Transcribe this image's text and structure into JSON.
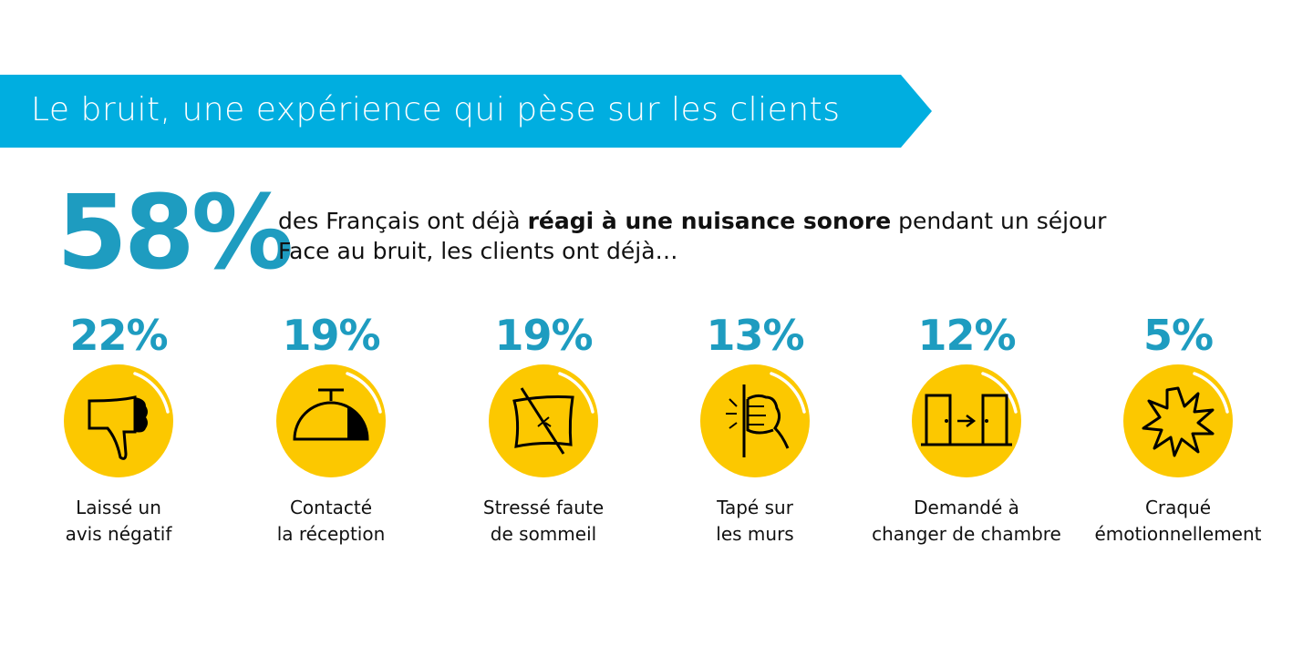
{
  "header": {
    "title": "Le bruit, une expérience qui pèse sur les clients"
  },
  "headline": {
    "value": "58%",
    "line1_pre": "des Français ont déjà ",
    "line1_bold": "réagi à une nuisance sonore",
    "line1_post": " pendant un séjour",
    "line2": "Face au bruit, les clients ont déjà…"
  },
  "colors": {
    "banner": "#00aee0",
    "accent": "#1e9cc0",
    "circle": "#fcc800"
  },
  "stats": [
    {
      "value": "22%",
      "line1": "Laissé un",
      "line2": "avis négatif",
      "icon": "thumbs-down-icon"
    },
    {
      "value": "19%",
      "line1": "Contacté",
      "line2": "la réception",
      "icon": "reception-bell-icon"
    },
    {
      "value": "19%",
      "line1": "Stressé faute",
      "line2": "de sommeil",
      "icon": "crossed-pillow-icon"
    },
    {
      "value": "13%",
      "line1": "Tapé sur",
      "line2": "les murs",
      "icon": "fist-knocking-wall-icon"
    },
    {
      "value": "12%",
      "line1": "Demandé à",
      "line2": "changer de chambre",
      "icon": "change-room-doors-icon"
    },
    {
      "value": "5%",
      "line1": "Craqué",
      "line2": "émotionnellement",
      "icon": "burst-icon"
    }
  ]
}
